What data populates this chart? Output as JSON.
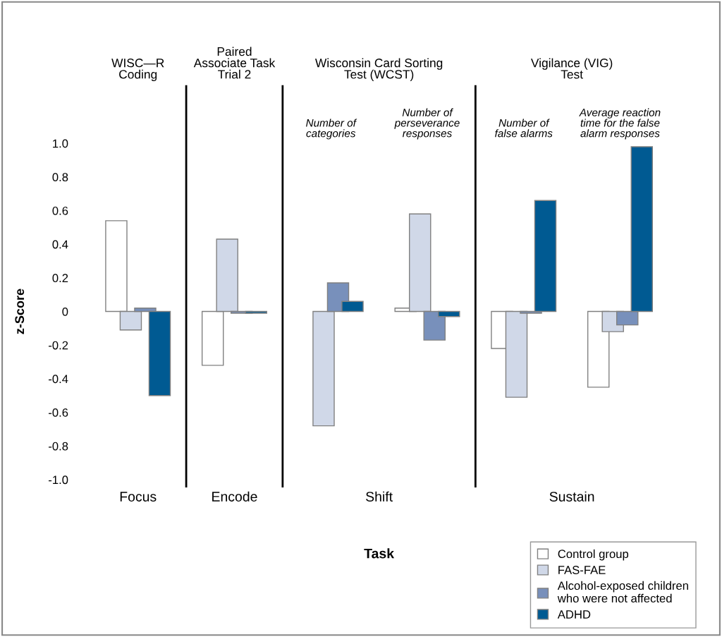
{
  "chart_data": {
    "type": "bar",
    "xlabel": "Task",
    "ylabel": "z-Score",
    "categories": [
      null,
      null,
      "Number of\ncategories",
      "Number of\nperseverance\nresponses",
      "Number of\nfalse alarms",
      "Average reaction\ntime for the false\nalarm responses"
    ],
    "series": [
      {
        "name": "Control group",
        "color": "#ffffff",
        "values": [
          0.54,
          -0.32,
          null,
          0.02,
          -0.22,
          -0.45
        ]
      },
      {
        "name": "FAS-FAE",
        "color": "#d0d8e8",
        "values": [
          -0.11,
          0.43,
          -0.68,
          0.58,
          -0.51,
          -0.12
        ]
      },
      {
        "name": "Alcohol-exposed children\nwho were not affected",
        "color": "#7890bb",
        "values": [
          0.02,
          -0.01,
          0.17,
          -0.17,
          -0.01,
          -0.08
        ]
      },
      {
        "name": "ADHD",
        "color": "#005a92",
        "values": [
          -0.5,
          -0.01,
          0.06,
          -0.03,
          0.66,
          0.98
        ]
      }
    ],
    "ylim": [
      -1.0,
      1.0
    ],
    "yticks": [
      {
        "value": -1.0,
        "label": "-1.0"
      },
      -0.8,
      -0.6,
      -0.4,
      -0.2,
      0,
      0.2,
      0.4,
      0.6,
      0.8,
      {
        "value": 1.0,
        "label": "1.0"
      }
    ],
    "annotations": [
      "WISC—R\nCoding",
      "Paired\nAssociate Task\nTrial 2",
      "Wisconsin Card Sorting\nTest (WCST)",
      "Vigilance (VIG)\nTest",
      "Focus",
      "Encode",
      "Shift",
      "Sustain"
    ],
    "grid": false,
    "legend": "bottom right"
  }
}
